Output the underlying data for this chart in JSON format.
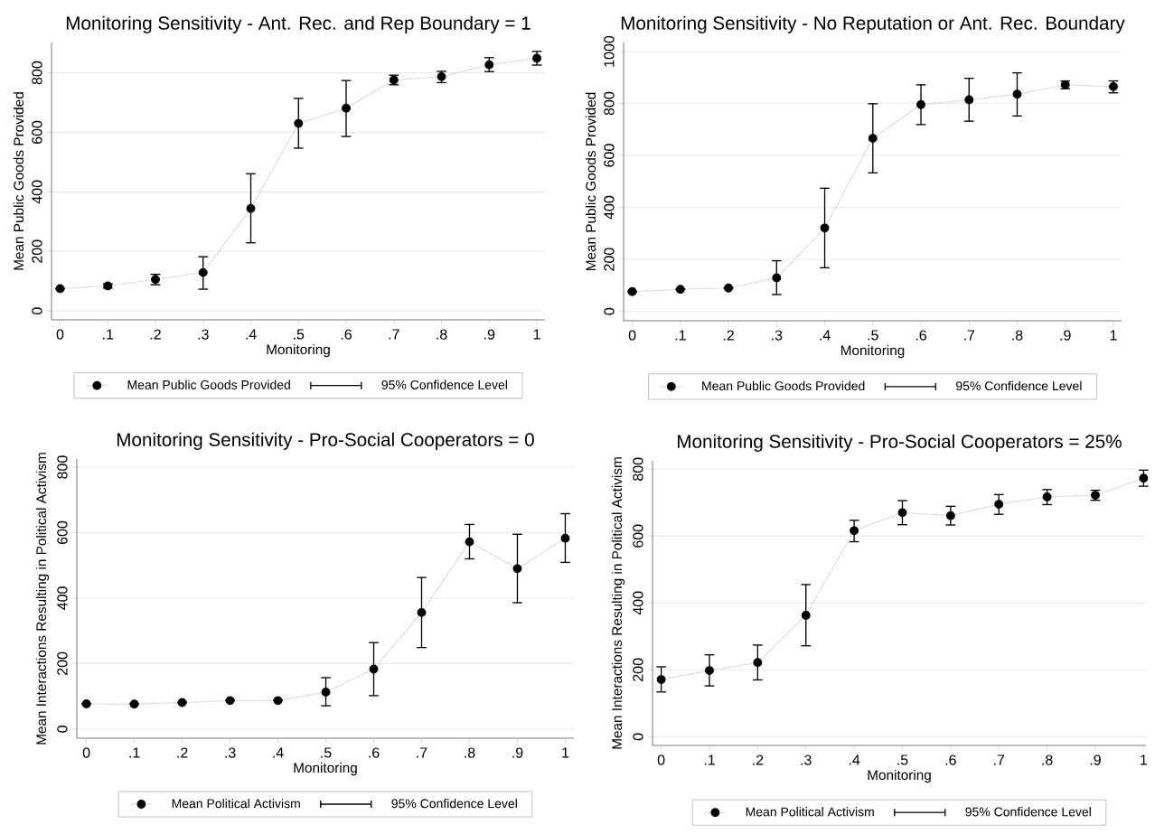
{
  "chart_data": [
    {
      "type": "line",
      "title": "Monitoring Sensitivity - Ant. Rec. and Rep Boundary = 1",
      "xlabel": "Monitoring",
      "ylabel": "Mean Public Goods Provided",
      "annotations": [
        "95% Confidence Level"
      ],
      "x": [
        0,
        0.1,
        0.2,
        0.3,
        0.4,
        0.5,
        0.6,
        0.7,
        0.8,
        0.9,
        1
      ],
      "xlim": [
        -0.018,
        1.017
      ],
      "ylim": [
        -30,
        902
      ],
      "xticks": [
        0,
        {
          "value": 0.1,
          "label": ".1"
        },
        {
          "value": 0.2,
          "label": ".2"
        },
        {
          "value": 0.3,
          "label": ".3"
        },
        {
          "value": 0.4,
          "label": ".4"
        },
        {
          "value": 0.5,
          "label": ".5"
        },
        {
          "value": 0.6,
          "label": ".6"
        },
        {
          "value": 0.7,
          "label": ".7"
        },
        {
          "value": 0.8,
          "label": ".8"
        },
        {
          "value": 0.9,
          "label": ".9"
        },
        1
      ],
      "yticks": [
        0,
        200,
        400,
        600,
        800
      ],
      "grid": "y",
      "legend": "bottom",
      "marker": "circle",
      "line_style": "dotted",
      "series": [
        {
          "name": "Mean Public Goods Provided",
          "color": "#000000",
          "values": [
            75,
            84,
            106,
            129,
            344,
            630,
            681,
            776,
            787,
            827,
            849
          ],
          "errors": [
            null,
            [
              77,
              91
            ],
            [
              88,
              123
            ],
            [
              73,
              182
            ],
            [
              229,
              461
            ],
            [
              547,
              714
            ],
            [
              586,
              774
            ],
            [
              760,
              792
            ],
            [
              767,
              805
            ],
            [
              804,
              851
            ],
            [
              826,
              872
            ]
          ]
        }
      ]
    },
    {
      "type": "line",
      "title": "Monitoring Sensitivity - No Reputation or Ant. Rec. Boundary",
      "xlabel": "Monitoring",
      "ylabel": "Mean Public Goods Provided",
      "annotations": [
        "95% Confidence Level"
      ],
      "x": [
        0,
        0.1,
        0.2,
        0.3,
        0.4,
        0.5,
        0.6,
        0.7,
        0.8,
        0.9,
        1
      ],
      "xlim": [
        -0.018,
        1.017
      ],
      "ylim": [
        -36,
        1035
      ],
      "xticks": [
        0,
        {
          "value": 0.1,
          "label": ".1"
        },
        {
          "value": 0.2,
          "label": ".2"
        },
        {
          "value": 0.3,
          "label": ".3"
        },
        {
          "value": 0.4,
          "label": ".4"
        },
        {
          "value": 0.5,
          "label": ".5"
        },
        {
          "value": 0.6,
          "label": ".6"
        },
        {
          "value": 0.7,
          "label": ".7"
        },
        {
          "value": 0.8,
          "label": ".8"
        },
        {
          "value": 0.9,
          "label": ".9"
        },
        1
      ],
      "yticks": [
        0,
        200,
        400,
        600,
        800,
        1000
      ],
      "grid": "y",
      "legend": "bottom",
      "marker": "circle",
      "line_style": "dotted",
      "series": [
        {
          "name": "Mean Public Goods Provided",
          "color": "#000000",
          "values": [
            76,
            85,
            90,
            129,
            321,
            666,
            796,
            814,
            836,
            872,
            865
          ],
          "errors": [
            null,
            null,
            null,
            [
              65,
              195
            ],
            [
              168,
              474
            ],
            [
              533,
              799
            ],
            [
              719,
              872
            ],
            [
              732,
              897
            ],
            [
              752,
              918
            ],
            [
              857,
              887
            ],
            [
              841,
              887
            ]
          ]
        }
      ]
    },
    {
      "type": "line",
      "title": "Monitoring Sensitivity - Pro-Social Cooperators = 0",
      "xlabel": "Monitoring",
      "ylabel": "Mean Interactions Resulting in Political Activism",
      "annotations": [
        "95% Confidence Level"
      ],
      "x": [
        0,
        0.1,
        0.2,
        0.3,
        0.4,
        0.5,
        0.6,
        0.7,
        0.8,
        0.9,
        1
      ],
      "xlim": [
        -0.02,
        1.018
      ],
      "ylim": [
        -28,
        825
      ],
      "xticks": [
        0,
        {
          "value": 0.1,
          "label": ".1"
        },
        {
          "value": 0.2,
          "label": ".2"
        },
        {
          "value": 0.3,
          "label": ".3"
        },
        {
          "value": 0.4,
          "label": ".4"
        },
        {
          "value": 0.5,
          "label": ".5"
        },
        {
          "value": 0.6,
          "label": ".6"
        },
        {
          "value": 0.7,
          "label": ".7"
        },
        {
          "value": 0.8,
          "label": ".8"
        },
        {
          "value": 0.9,
          "label": ".9"
        },
        1
      ],
      "yticks": [
        0,
        200,
        400,
        600,
        800
      ],
      "grid": "y",
      "legend": "bottom",
      "marker": "circle",
      "line_style": "dotted",
      "series": [
        {
          "name": "Mean Political Activism",
          "color": "#000000",
          "values": [
            77,
            76,
            81,
            87,
            87,
            113,
            183,
            356,
            572,
            490,
            583
          ],
          "errors": [
            null,
            null,
            null,
            null,
            null,
            [
              71,
              157
            ],
            [
              102,
              264
            ],
            [
              249,
              463
            ],
            [
              520,
              625
            ],
            [
              386,
              595
            ],
            [
              509,
              658
            ]
          ]
        }
      ]
    },
    {
      "type": "line",
      "title": "Monitoring Sensitivity - Pro-Social Cooperators = 25%",
      "xlabel": "Monitoring",
      "ylabel": "Mean Interactions Resulting in Political Activism",
      "annotations": [
        "95% Confidence Level"
      ],
      "x": [
        0,
        0.1,
        0.2,
        0.3,
        0.4,
        0.5,
        0.6,
        0.7,
        0.8,
        0.9,
        1
      ],
      "xlim": [
        -0.018,
        1.005
      ],
      "ylim": [
        -26,
        825
      ],
      "xticks": [
        0,
        {
          "value": 0.1,
          "label": ".1"
        },
        {
          "value": 0.2,
          "label": ".2"
        },
        {
          "value": 0.3,
          "label": ".3"
        },
        {
          "value": 0.4,
          "label": ".4"
        },
        {
          "value": 0.5,
          "label": ".5"
        },
        {
          "value": 0.6,
          "label": ".6"
        },
        {
          "value": 0.7,
          "label": ".7"
        },
        {
          "value": 0.8,
          "label": ".8"
        },
        {
          "value": 0.9,
          "label": ".9"
        },
        1
      ],
      "yticks": [
        0,
        200,
        400,
        600,
        800
      ],
      "grid": "y",
      "legend": "bottom",
      "marker": "circle",
      "line_style": "dotted",
      "series": [
        {
          "name": "Mean Political Activism",
          "color": "#000000",
          "values": [
            171,
            198,
            222,
            363,
            616,
            670,
            661,
            695,
            717,
            722,
            773
          ],
          "errors": [
            [
              134,
              209
            ],
            [
              152,
              245
            ],
            [
              170,
              274
            ],
            [
              272,
              455
            ],
            [
              583,
              647
            ],
            [
              634,
              706
            ],
            [
              633,
              689
            ],
            [
              665,
              724
            ],
            [
              694,
              739
            ],
            [
              707,
              737
            ],
            [
              749,
              797
            ]
          ]
        }
      ]
    }
  ]
}
